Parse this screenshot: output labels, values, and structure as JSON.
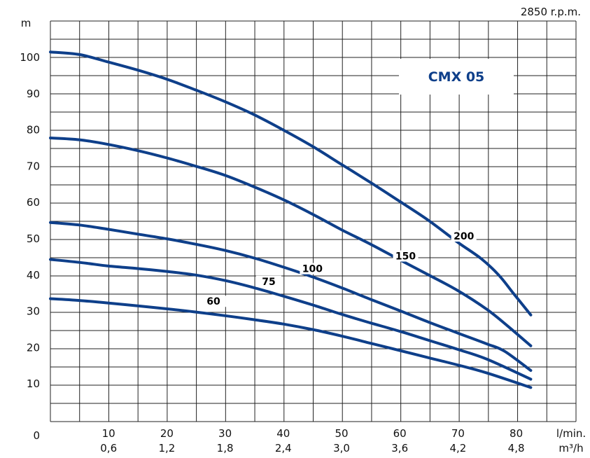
{
  "chart_data": {
    "type": "line",
    "title": "CMX 05",
    "speed_note": "2850 r.p.m.",
    "ylabel": "m",
    "xlabel_primary": "l/min.",
    "xlabel_secondary": "m³/h",
    "xlim": [
      0,
      90
    ],
    "ylim": [
      0,
      105
    ],
    "grid": true,
    "x_ticks": [
      {
        "value": 10,
        "label": "10",
        "label2": "0,6"
      },
      {
        "value": 20,
        "label": "20",
        "label2": "1,2"
      },
      {
        "value": 30,
        "label": "30",
        "label2": "1,8"
      },
      {
        "value": 40,
        "label": "40",
        "label2": "2,4"
      },
      {
        "value": 50,
        "label": "50",
        "label2": "3,0"
      },
      {
        "value": 60,
        "label": "60",
        "label2": "3,6"
      },
      {
        "value": 70,
        "label": "70",
        "label2": "4,2"
      },
      {
        "value": 80,
        "label": "80",
        "label2": "4,8"
      }
    ],
    "y_ticks": [
      {
        "value": 0,
        "label": "0"
      },
      {
        "value": 10,
        "label": "10"
      },
      {
        "value": 20,
        "label": "20"
      },
      {
        "value": 30,
        "label": "30"
      },
      {
        "value": 40,
        "label": "40"
      },
      {
        "value": 50,
        "label": "50"
      },
      {
        "value": 60,
        "label": "60"
      },
      {
        "value": 70,
        "label": "70"
      },
      {
        "value": 80,
        "label": "80"
      },
      {
        "value": 90,
        "label": "90"
      },
      {
        "value": 100,
        "label": "100"
      }
    ],
    "line_color": "#0e3f8a",
    "series": [
      {
        "name": "200",
        "label_at": [
          71,
          50
        ],
        "points": [
          [
            0,
            101.5
          ],
          [
            5,
            100.8
          ],
          [
            10,
            98.7
          ],
          [
            15,
            96.5
          ],
          [
            20,
            94
          ],
          [
            25,
            91
          ],
          [
            30,
            87.8
          ],
          [
            35,
            84.2
          ],
          [
            40,
            80
          ],
          [
            45,
            75.5
          ],
          [
            50,
            70.5
          ],
          [
            55,
            65.5
          ],
          [
            60,
            60.3
          ],
          [
            65,
            55
          ],
          [
            70,
            49
          ],
          [
            74,
            44.5
          ],
          [
            77,
            40
          ],
          [
            79.5,
            35
          ],
          [
            82.5,
            29
          ]
        ]
      },
      {
        "name": "150",
        "label_at": [
          61,
          44.5
        ],
        "points": [
          [
            0,
            77.8
          ],
          [
            5,
            77.3
          ],
          [
            10,
            76
          ],
          [
            15,
            74.3
          ],
          [
            20,
            72.3
          ],
          [
            25,
            70
          ],
          [
            30,
            67.5
          ],
          [
            35,
            64.3
          ],
          [
            40,
            60.8
          ],
          [
            45,
            56.8
          ],
          [
            50,
            52.5
          ],
          [
            55,
            48.5
          ],
          [
            60,
            44.2
          ],
          [
            65,
            40
          ],
          [
            70,
            35.7
          ],
          [
            75,
            30.5
          ],
          [
            78.5,
            26
          ],
          [
            82.5,
            20.5
          ]
        ]
      },
      {
        "name": "100",
        "label_at": [
          45,
          41
        ],
        "points": [
          [
            0,
            54.5
          ],
          [
            5,
            53.8
          ],
          [
            10,
            52.6
          ],
          [
            15,
            51.3
          ],
          [
            20,
            50
          ],
          [
            25,
            48.5
          ],
          [
            30,
            46.8
          ],
          [
            35,
            44.7
          ],
          [
            40,
            42.2
          ],
          [
            45,
            39.5
          ],
          [
            50,
            36.5
          ],
          [
            55,
            33.3
          ],
          [
            60,
            30.2
          ],
          [
            65,
            27
          ],
          [
            70,
            24
          ],
          [
            75,
            21
          ],
          [
            78,
            19
          ],
          [
            82.5,
            13.7
          ]
        ]
      },
      {
        "name": "75",
        "label_at": [
          37.5,
          37.5
        ],
        "points": [
          [
            0,
            44.3
          ],
          [
            5,
            43.5
          ],
          [
            10,
            42.5
          ],
          [
            15,
            41.8
          ],
          [
            20,
            41
          ],
          [
            25,
            40
          ],
          [
            30,
            38.5
          ],
          [
            35,
            36.5
          ],
          [
            40,
            34.2
          ],
          [
            45,
            31.8
          ],
          [
            50,
            29.2
          ],
          [
            55,
            26.8
          ],
          [
            60,
            24.5
          ],
          [
            65,
            22
          ],
          [
            70,
            19.5
          ],
          [
            75,
            16.8
          ],
          [
            82.5,
            11.3
          ]
        ]
      },
      {
        "name": "60",
        "label_at": [
          28,
          32
        ],
        "points": [
          [
            0,
            33.5
          ],
          [
            5,
            33
          ],
          [
            10,
            32.3
          ],
          [
            15,
            31.5
          ],
          [
            20,
            30.7
          ],
          [
            25,
            29.8
          ],
          [
            30,
            28.8
          ],
          [
            35,
            27.7
          ],
          [
            40,
            26.5
          ],
          [
            45,
            25
          ],
          [
            50,
            23.2
          ],
          [
            55,
            21.2
          ],
          [
            60,
            19.2
          ],
          [
            65,
            17.2
          ],
          [
            70,
            15.2
          ],
          [
            75,
            13
          ],
          [
            82.5,
            9
          ]
        ]
      }
    ]
  }
}
